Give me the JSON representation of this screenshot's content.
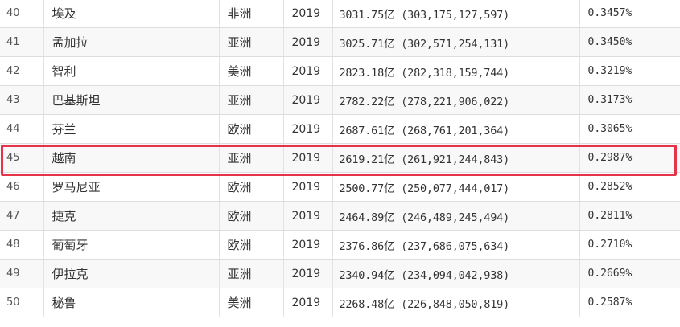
{
  "table": {
    "rows": [
      {
        "rank": "40",
        "country": "埃及",
        "continent": "非洲",
        "year": "2019",
        "gdp": "3031.75亿 (303,175,127,597)",
        "share": "0.3457%"
      },
      {
        "rank": "41",
        "country": "孟加拉",
        "continent": "亚洲",
        "year": "2019",
        "gdp": "3025.71亿 (302,571,254,131)",
        "share": "0.3450%"
      },
      {
        "rank": "42",
        "country": "智利",
        "continent": "美洲",
        "year": "2019",
        "gdp": "2823.18亿 (282,318,159,744)",
        "share": "0.3219%"
      },
      {
        "rank": "43",
        "country": "巴基斯坦",
        "continent": "亚洲",
        "year": "2019",
        "gdp": "2782.22亿 (278,221,906,022)",
        "share": "0.3173%"
      },
      {
        "rank": "44",
        "country": "芬兰",
        "continent": "欧洲",
        "year": "2019",
        "gdp": "2687.61亿 (268,761,201,364)",
        "share": "0.3065%"
      },
      {
        "rank": "45",
        "country": "越南",
        "continent": "亚洲",
        "year": "2019",
        "gdp": "2619.21亿 (261,921,244,843)",
        "share": "0.2987%",
        "highlighted": true
      },
      {
        "rank": "46",
        "country": "罗马尼亚",
        "continent": "欧洲",
        "year": "2019",
        "gdp": "2500.77亿 (250,077,444,017)",
        "share": "0.2852%"
      },
      {
        "rank": "47",
        "country": "捷克",
        "continent": "欧洲",
        "year": "2019",
        "gdp": "2464.89亿 (246,489,245,494)",
        "share": "0.2811%"
      },
      {
        "rank": "48",
        "country": "葡萄牙",
        "continent": "欧洲",
        "year": "2019",
        "gdp": "2376.86亿 (237,686,075,634)",
        "share": "0.2710%"
      },
      {
        "rank": "49",
        "country": "伊拉克",
        "continent": "亚洲",
        "year": "2019",
        "gdp": "2340.94亿 (234,094,042,938)",
        "share": "0.2669%"
      },
      {
        "rank": "50",
        "country": "秘鲁",
        "continent": "美洲",
        "year": "2019",
        "gdp": "2268.48亿 (226,848,050,819)",
        "share": "0.2587%"
      }
    ]
  },
  "colors": {
    "highlight_border": "#e5344a",
    "row_stripe": "#f8f8f8",
    "grid_line": "#dddddd"
  }
}
